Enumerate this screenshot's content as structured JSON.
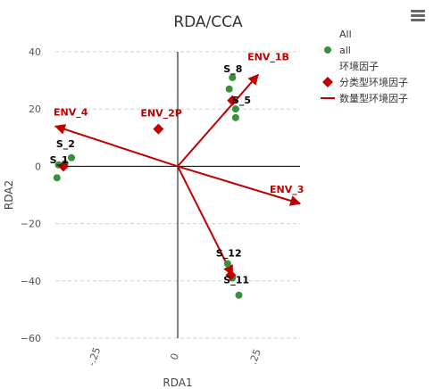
{
  "menu": {
    "icon": "hamburger-menu-icon"
  },
  "chart_data": {
    "type": "scatter",
    "title": "RDA/CCA",
    "xlabel": "RDA1",
    "ylabel": "RDA2",
    "xlim": [
      -0.38,
      0.38
    ],
    "ylim": [
      -60,
      40
    ],
    "xticks": [
      -0.25,
      0,
      0.25
    ],
    "xtick_labels": [
      "-.25",
      "0",
      ".25"
    ],
    "yticks": [
      -60,
      -40,
      -20,
      0,
      20,
      40
    ],
    "ytick_labels": [
      "−60",
      "−40",
      "−20",
      "0",
      "20",
      "40"
    ],
    "grid": "horizontal dashed",
    "legend_position": "top-right",
    "legend": {
      "title": "All",
      "entries": [
        {
          "key": "sites",
          "label": "all",
          "symbol": "circle",
          "color": "#3a8f3a"
        },
        {
          "key": "group",
          "label": "环境因子",
          "symbol": "none"
        },
        {
          "key": "env_factor",
          "label": "分类型环境因子",
          "symbol": "diamond",
          "color": "#c00000"
        },
        {
          "key": "env_vector",
          "label": "数量型环境因子",
          "symbol": "line",
          "color": "#c00000"
        }
      ]
    },
    "sites": {
      "color": "#3a8f3a",
      "points": [
        {
          "x": -0.37,
          "y": 0.5,
          "label": "S_1"
        },
        {
          "x": -0.35,
          "y": 1,
          "label": "S_2"
        },
        {
          "x": -0.33,
          "y": 3,
          "label": ""
        },
        {
          "x": -0.375,
          "y": -4,
          "label": ""
        },
        {
          "x": 0.17,
          "y": 31,
          "label": "S_8"
        },
        {
          "x": 0.16,
          "y": 27,
          "label": ""
        },
        {
          "x": 0.18,
          "y": 20,
          "label": "S_5"
        },
        {
          "x": 0.18,
          "y": 17,
          "label": ""
        },
        {
          "x": 0.155,
          "y": -34,
          "label": "S_12"
        },
        {
          "x": 0.17,
          "y": -39,
          "label": "S_11"
        },
        {
          "x": 0.19,
          "y": -45,
          "label": ""
        }
      ]
    },
    "categorical_factors": {
      "color": "#c00000",
      "points": [
        {
          "x": -0.06,
          "y": 13,
          "label": "ENV_2P"
        },
        {
          "x": -0.355,
          "y": 0,
          "label": ""
        },
        {
          "x": 0.17,
          "y": 23,
          "label": ""
        },
        {
          "x": 0.165,
          "y": -38,
          "label": ""
        }
      ]
    },
    "vectors": {
      "color": "#c00000",
      "items": [
        {
          "label": "ENV_1B",
          "x": 0.25,
          "y": 32
        },
        {
          "label": "ENV_4",
          "x": -0.38,
          "y": 14
        },
        {
          "label": "ENV_3",
          "x": 0.38,
          "y": -13
        },
        {
          "label": "",
          "x": 0.17,
          "y": -38
        }
      ]
    }
  }
}
